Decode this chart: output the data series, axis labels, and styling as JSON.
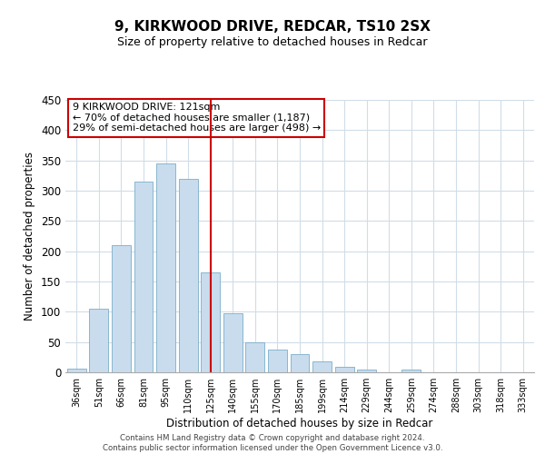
{
  "title": "9, KIRKWOOD DRIVE, REDCAR, TS10 2SX",
  "subtitle": "Size of property relative to detached houses in Redcar",
  "xlabel": "Distribution of detached houses by size in Redcar",
  "ylabel": "Number of detached properties",
  "bar_labels": [
    "36sqm",
    "51sqm",
    "66sqm",
    "81sqm",
    "95sqm",
    "110sqm",
    "125sqm",
    "140sqm",
    "155sqm",
    "170sqm",
    "185sqm",
    "199sqm",
    "214sqm",
    "229sqm",
    "244sqm",
    "259sqm",
    "274sqm",
    "288sqm",
    "303sqm",
    "318sqm",
    "333sqm"
  ],
  "bar_values": [
    6,
    105,
    210,
    315,
    345,
    320,
    165,
    97,
    50,
    37,
    30,
    18,
    9,
    5,
    0,
    4,
    0,
    0,
    0,
    0,
    0
  ],
  "bar_color": "#c8dcee",
  "bar_edge_color": "#7aaec8",
  "highlight_index": 6,
  "annotation_title": "9 KIRKWOOD DRIVE: 121sqm",
  "annotation_line1": "← 70% of detached houses are smaller (1,187)",
  "annotation_line2": "29% of semi-detached houses are larger (498) →",
  "annotation_box_color": "#ffffff",
  "annotation_box_edge": "#cc0000",
  "vline_color": "#cc0000",
  "ylim": [
    0,
    450
  ],
  "yticks": [
    0,
    50,
    100,
    150,
    200,
    250,
    300,
    350,
    400,
    450
  ],
  "footer1": "Contains HM Land Registry data © Crown copyright and database right 2024.",
  "footer2": "Contains public sector information licensed under the Open Government Licence v3.0."
}
